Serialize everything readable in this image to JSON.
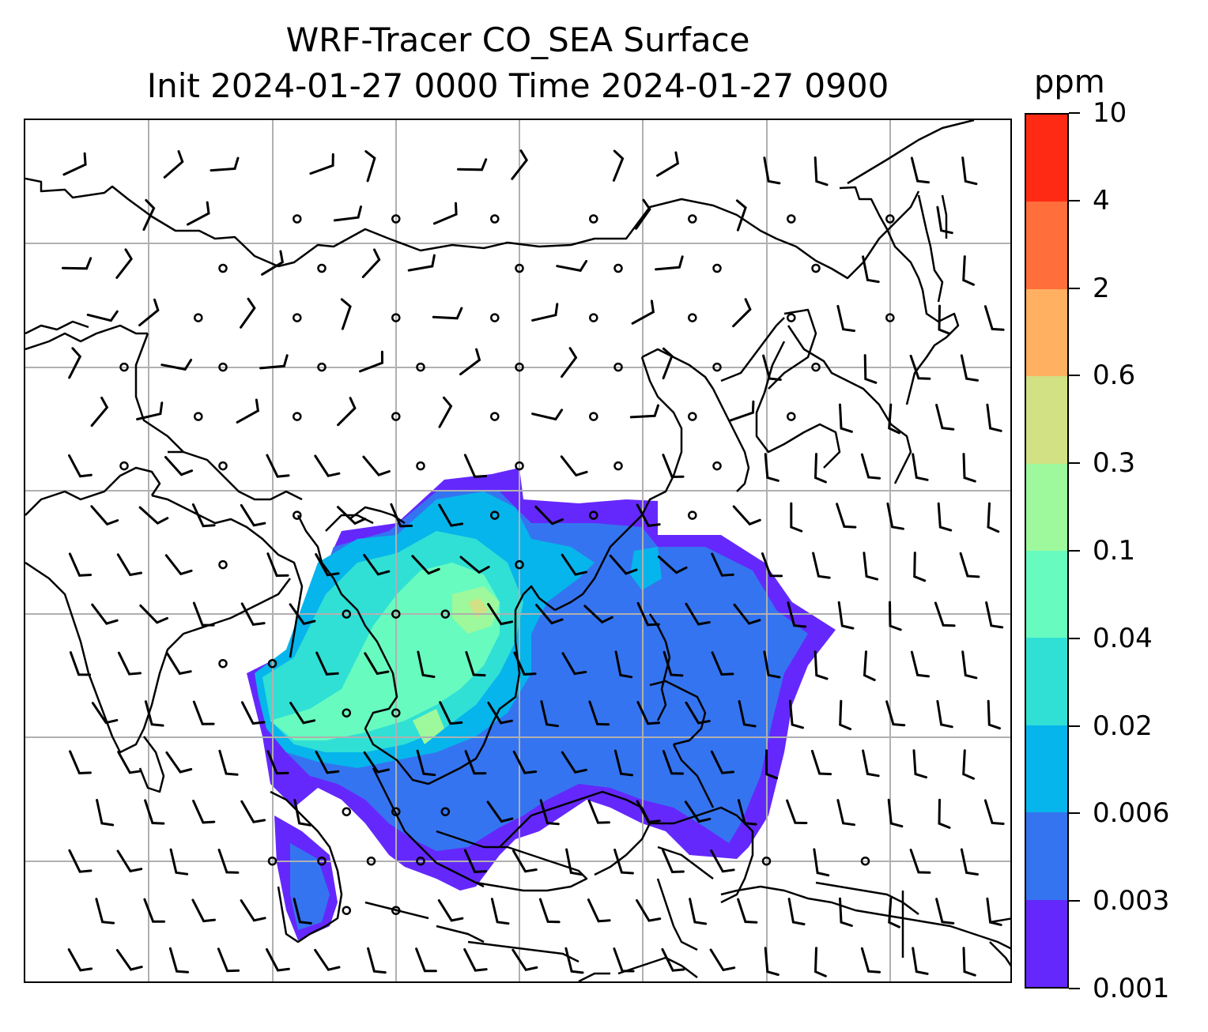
{
  "title": {
    "line1": "WRF-Tracer CO_SEA Surface",
    "line2": "Init 2024-01-27 0000 Time 2024-01-27 0900"
  },
  "colorbar": {
    "unit": "ppm",
    "levels": [
      "0.001",
      "0.003",
      "0.006",
      "0.02",
      "0.04",
      "0.1",
      "0.3",
      "0.6",
      "2",
      "4",
      "10"
    ],
    "colors": [
      "#6428fc",
      "#3574f0",
      "#06b5eb",
      "#30e0d5",
      "#68fbbf",
      "#9ef99c",
      "#d1e183",
      "#ffb060",
      "#ff6e3b",
      "#ff2a14"
    ]
  },
  "map": {
    "gridline_color": "#b0b0b0",
    "coastline_color": "#000000",
    "grid_columns": 8,
    "grid_rows": 7
  }
}
